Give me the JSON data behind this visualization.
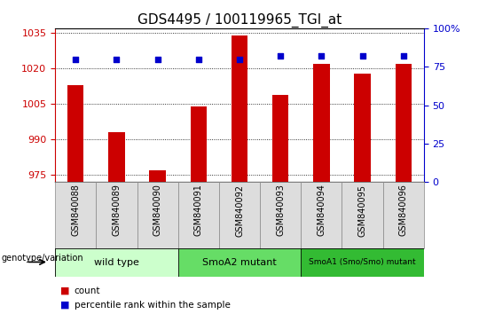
{
  "title": "GDS4495 / 100119965_TGI_at",
  "samples": [
    "GSM840088",
    "GSM840089",
    "GSM840090",
    "GSM840091",
    "GSM840092",
    "GSM840093",
    "GSM840094",
    "GSM840095",
    "GSM840096"
  ],
  "counts": [
    1013,
    993,
    977,
    1004,
    1034,
    1009,
    1022,
    1018,
    1022
  ],
  "percentiles": [
    80,
    80,
    80,
    80,
    80,
    82,
    82,
    82,
    82
  ],
  "ylim_left": [
    972,
    1037
  ],
  "ylim_right": [
    0,
    100
  ],
  "yticks_left": [
    975,
    990,
    1005,
    1020,
    1035
  ],
  "yticks_right": [
    0,
    25,
    50,
    75,
    100
  ],
  "bar_color": "#cc0000",
  "dot_color": "#0000cc",
  "groups": [
    {
      "label": "wild type",
      "start": 0,
      "end": 2,
      "color": "#ccffcc"
    },
    {
      "label": "SmoA2 mutant",
      "start": 3,
      "end": 5,
      "color": "#66dd66"
    },
    {
      "label": "SmoA1 (Smo/Smo) mutant",
      "start": 6,
      "end": 8,
      "color": "#33bb33"
    }
  ],
  "genotype_label": "genotype/variation",
  "legend_count_label": "count",
  "legend_percentile_label": "percentile rank within the sample",
  "title_fontsize": 11,
  "axis_color_left": "#cc0000",
  "axis_color_right": "#0000cc",
  "xtick_bg": "#dddddd",
  "xtick_border": "#888888"
}
